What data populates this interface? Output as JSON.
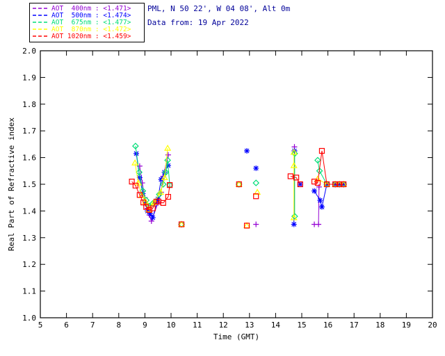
{
  "header": {
    "location_line": "PML, N 50 22', W 04 08', Alt 0m",
    "date_line": "Data from: 19 Apr 2022",
    "text_color": "#000099"
  },
  "legend": {
    "entries": [
      {
        "label": "AOT  400nm : <1.471>",
        "color": "#9400D3"
      },
      {
        "label": "AOT  500nm : <1.474>",
        "color": "#0000FF"
      },
      {
        "label": "AOT  675nm : <1.477>",
        "color": "#00DD77"
      },
      {
        "label": "AOT  870nm : <1.472>",
        "color": "#FFFF00"
      },
      {
        "label": "AOT 1020nm : <1.459>",
        "color": "#FF0000"
      }
    ]
  },
  "chart_data": {
    "type": "scatter",
    "title": "",
    "xlabel": "Time (GMT)",
    "ylabel": "Real Part of Refractive index",
    "xlim": [
      5,
      20
    ],
    "ylim": [
      1.0,
      2.0
    ],
    "xticks": [
      5,
      6,
      7,
      8,
      9,
      10,
      11,
      12,
      13,
      14,
      15,
      16,
      17,
      18,
      19,
      20
    ],
    "yticks": [
      1.0,
      1.1,
      1.2,
      1.3,
      1.4,
      1.5,
      1.6,
      1.7,
      1.8,
      1.9,
      2.0
    ],
    "grid": false,
    "legend_position": "top-left-outside",
    "axis_color": "#000000",
    "series": [
      {
        "name": "AOT 400nm",
        "wavelength": "400nm",
        "mean_label": "<1.471>",
        "color": "#9400D3",
        "marker": "plus",
        "segments": [
          [
            [
              8.8,
              1.568
            ],
            [
              8.9,
              1.505
            ],
            [
              9.0,
              1.45
            ],
            [
              9.1,
              1.41
            ],
            [
              9.17,
              1.385
            ],
            [
              9.25,
              1.362
            ],
            [
              9.5,
              1.43
            ],
            [
              9.62,
              1.47
            ],
            [
              9.7,
              1.53
            ],
            [
              9.89,
              1.61
            ]
          ],
          [
            [
              13.25,
              1.35
            ]
          ],
          [
            [
              14.72,
              1.64
            ],
            [
              14.72,
              1.625
            ]
          ],
          [
            [
              15.48,
              1.35
            ],
            [
              15.64,
              1.35
            ],
            [
              15.66,
              1.49
            ]
          ]
        ]
      },
      {
        "name": "AOT 500nm",
        "wavelength": "500nm",
        "mean_label": "<1.474>",
        "color": "#0000FF",
        "marker": "asterisk",
        "segments": [
          [
            [
              8.67,
              1.615
            ],
            [
              8.8,
              1.525
            ],
            [
              8.92,
              1.465
            ],
            [
              9.02,
              1.428
            ],
            [
              9.1,
              1.4
            ],
            [
              9.2,
              1.39
            ],
            [
              9.3,
              1.375
            ],
            [
              9.5,
              1.445
            ],
            [
              9.62,
              1.518
            ],
            [
              9.75,
              1.545
            ],
            [
              9.89,
              1.57
            ]
          ],
          [
            [
              12.9,
              1.625
            ]
          ],
          [
            [
              13.25,
              1.56
            ]
          ],
          [
            [
              14.72,
              1.625
            ],
            [
              14.7,
              1.35
            ]
          ],
          [
            [
              14.94,
              1.5
            ]
          ],
          [
            [
              15.48,
              1.475
            ],
            [
              15.7,
              1.44
            ],
            [
              15.77,
              1.415
            ],
            [
              15.96,
              1.5
            ],
            [
              16.28,
              1.5
            ],
            [
              16.44,
              1.5
            ],
            [
              16.6,
              1.5
            ]
          ]
        ]
      },
      {
        "name": "AOT 675nm",
        "wavelength": "675nm",
        "mean_label": "<1.477>",
        "color": "#00DD77",
        "marker": "diamond",
        "segments": [
          [
            [
              8.64,
              1.643
            ],
            [
              8.78,
              1.545
            ],
            [
              8.92,
              1.475
            ],
            [
              9.05,
              1.44
            ],
            [
              9.15,
              1.418
            ],
            [
              9.3,
              1.428
            ],
            [
              9.55,
              1.462
            ],
            [
              9.7,
              1.5
            ],
            [
              9.8,
              1.545
            ],
            [
              9.87,
              1.59
            ],
            [
              9.95,
              1.497
            ]
          ],
          [
            [
              10.4,
              1.35
            ]
          ],
          [
            [
              12.6,
              1.5
            ]
          ],
          [
            [
              13.25,
              1.505
            ]
          ],
          [
            [
              14.73,
              1.615
            ],
            [
              14.73,
              1.38
            ]
          ],
          [
            [
              15.61,
              1.59
            ],
            [
              15.68,
              1.55
            ],
            [
              15.96,
              1.5
            ],
            [
              16.28,
              1.5
            ],
            [
              16.44,
              1.5
            ],
            [
              16.6,
              1.5
            ]
          ]
        ]
      },
      {
        "name": "AOT 870nm",
        "wavelength": "870nm",
        "mean_label": "<1.472>",
        "color": "#FFFF00",
        "marker": "triangle",
        "segments": [
          [
            [
              8.62,
              1.58
            ],
            [
              8.75,
              1.505
            ],
            [
              8.88,
              1.458
            ],
            [
              9.02,
              1.435
            ],
            [
              9.15,
              1.405
            ],
            [
              9.35,
              1.432
            ],
            [
              9.6,
              1.47
            ],
            [
              9.75,
              1.525
            ],
            [
              9.87,
              1.635
            ]
          ],
          [
            [
              10.4,
              1.35
            ]
          ],
          [
            [
              12.6,
              1.5
            ]
          ],
          [
            [
              13.3,
              1.47
            ]
          ],
          [
            [
              12.9,
              1.345
            ]
          ],
          [
            [
              14.7,
              1.62
            ],
            [
              14.7,
              1.57
            ],
            [
              14.7,
              1.375
            ]
          ],
          [
            [
              15.61,
              1.52
            ],
            [
              15.96,
              1.5
            ],
            [
              16.28,
              1.5
            ],
            [
              16.44,
              1.5
            ],
            [
              16.6,
              1.5
            ]
          ]
        ]
      },
      {
        "name": "AOT 1020nm",
        "wavelength": "1020nm",
        "mean_label": "<1.459>",
        "color": "#FF0000",
        "marker": "square",
        "segments": [
          [
            [
              8.5,
              1.51
            ],
            [
              8.64,
              1.495
            ],
            [
              8.8,
              1.46
            ],
            [
              8.94,
              1.432
            ],
            [
              9.05,
              1.415
            ],
            [
              9.17,
              1.404
            ],
            [
              9.3,
              1.41
            ],
            [
              9.44,
              1.435
            ],
            [
              9.52,
              1.435
            ],
            [
              9.7,
              1.43
            ],
            [
              9.89,
              1.453
            ],
            [
              9.95,
              1.497
            ]
          ],
          [
            [
              10.4,
              1.35
            ]
          ],
          [
            [
              12.6,
              1.5
            ]
          ],
          [
            [
              13.25,
              1.455
            ]
          ],
          [
            [
              12.9,
              1.345
            ]
          ],
          [
            [
              14.57,
              1.53
            ],
            [
              14.79,
              1.525
            ],
            [
              14.94,
              1.5
            ]
          ],
          [
            [
              15.48,
              1.51
            ],
            [
              15.61,
              1.505
            ],
            [
              15.77,
              1.625
            ],
            [
              15.96,
              1.5
            ],
            [
              16.28,
              1.5
            ],
            [
              16.44,
              1.5
            ],
            [
              16.6,
              1.5
            ]
          ]
        ]
      }
    ]
  }
}
